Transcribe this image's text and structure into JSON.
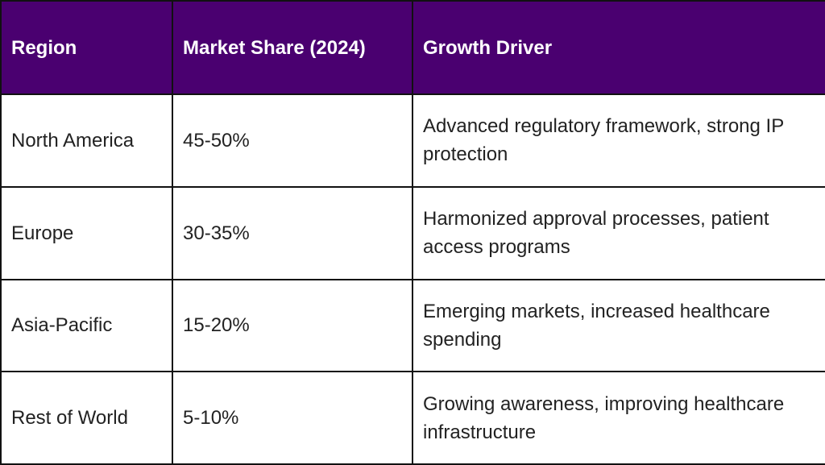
{
  "colors": {
    "header_background": "#4a0070",
    "header_text": "#ffffff",
    "border": "#111111"
  },
  "table": {
    "headers": [
      "Region",
      "Market Share (2024)",
      "Growth Driver"
    ],
    "rows": [
      [
        "North America",
        "45-50%",
        "Advanced regulatory framework, strong IP protection"
      ],
      [
        "Europe",
        "30-35%",
        "Harmonized approval processes, patient access programs"
      ],
      [
        "Asia-Pacific",
        "15-20%",
        "Emerging markets, increased healthcare spending"
      ],
      [
        "Rest of World",
        "5-10%",
        "Growing awareness, improving healthcare infrastructure"
      ]
    ]
  }
}
